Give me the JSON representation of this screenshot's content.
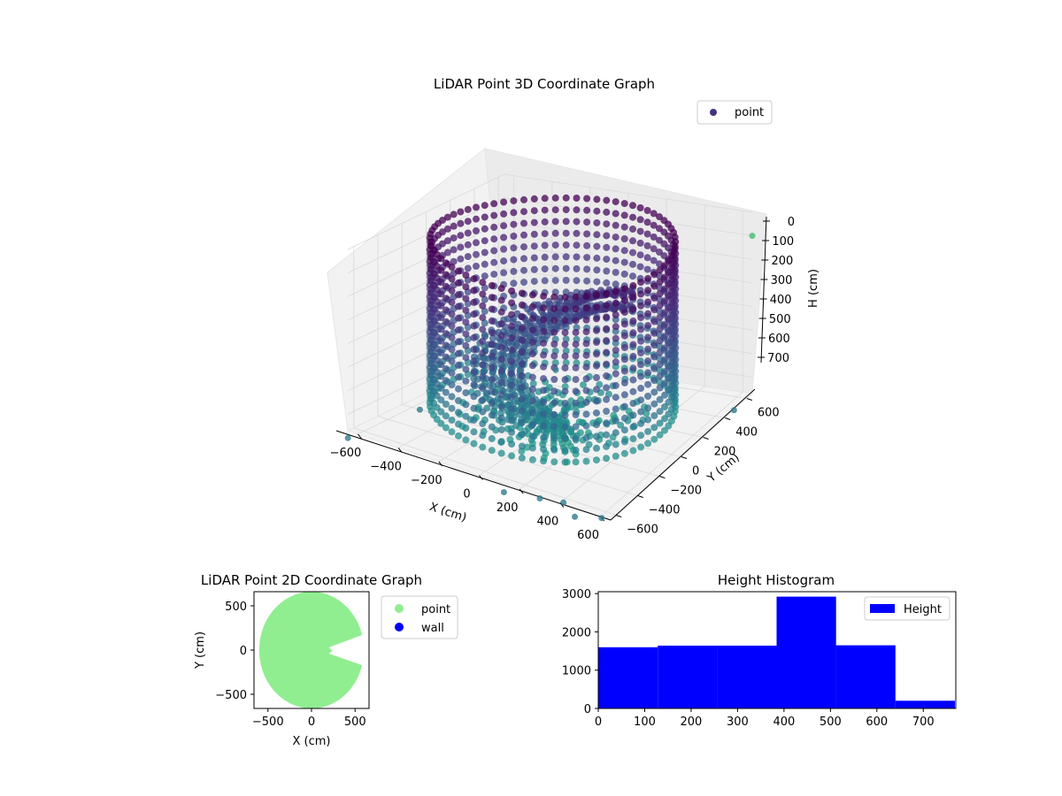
{
  "figure": {
    "background": "#ffffff"
  },
  "chart_data": [
    {
      "id": "lidar-3d",
      "type": "scatter",
      "projection": "3d",
      "title": "LiDAR Point 3D Coordinate Graph",
      "xlabel": "X (cm)",
      "ylabel": "Y (cm)",
      "zlabel": "H (cm)",
      "xlim": [
        -650,
        650
      ],
      "ylim": [
        -650,
        650
      ],
      "zlim": [
        0,
        770
      ],
      "z_inverted": true,
      "x_ticks": [
        "−600",
        "−400",
        "−200",
        "0",
        "200",
        "400",
        "600"
      ],
      "x_tick_values": [
        -600,
        -400,
        -200,
        0,
        200,
        400,
        600
      ],
      "y_ticks": [
        "−600",
        "−400",
        "−200",
        "0",
        "200",
        "400",
        "600"
      ],
      "y_tick_values": [
        -600,
        -400,
        -200,
        0,
        200,
        400,
        600
      ],
      "z_ticks": [
        "0",
        "100",
        "200",
        "300",
        "400",
        "500",
        "600",
        "700"
      ],
      "z_tick_values": [
        0,
        100,
        200,
        300,
        400,
        500,
        600,
        700
      ],
      "grid": true,
      "legend": {
        "position": "top-right",
        "entries": [
          "point"
        ]
      },
      "colormap": "viridis",
      "series": [
        {
          "name": "point",
          "color": "#46337e",
          "description_values": {
            "outer_wall_radius_cm": 540,
            "wall_height_range_cm": [
              0,
              770
            ],
            "inner_ramp_radius_cm": [
              150,
              380
            ]
          },
          "outliers": [
            {
              "x": -620,
              "y": -700,
              "h": 780
            },
            {
              "x": -560,
              "y": -200,
              "h": 770
            },
            {
              "x": -350,
              "y": 600,
              "h": 780
            },
            {
              "x": 300,
              "y": -650,
              "h": 780
            },
            {
              "x": 150,
              "y": -700,
              "h": 780
            },
            {
              "x": 400,
              "y": -620,
              "h": 780
            },
            {
              "x": 500,
              "y": -700,
              "h": 780
            },
            {
              "x": 600,
              "y": -640,
              "h": 780
            },
            {
              "x": 640,
              "y": 500,
              "h": 780
            },
            {
              "x": 650,
              "y": 650,
              "h": 100
            }
          ]
        }
      ]
    },
    {
      "id": "lidar-2d",
      "type": "scatter",
      "title": "LiDAR Point 2D Coordinate Graph",
      "xlabel": "X (cm)",
      "ylabel": "Y (cm)",
      "xlim": [
        -660,
        660
      ],
      "ylim": [
        -660,
        660
      ],
      "x_ticks": [
        "−500",
        "0",
        "500"
      ],
      "x_tick_values": [
        -500,
        0,
        500
      ],
      "y_ticks": [
        "500",
        "0",
        "−500"
      ],
      "y_tick_values": [
        500,
        0,
        -500
      ],
      "grid": false,
      "legend": {
        "position": "right-outside",
        "entries": [
          "point",
          "wall"
        ]
      },
      "series": [
        {
          "name": "point",
          "color": "#90ee90",
          "shape": "disc with gap to the right",
          "outer_radius": 600,
          "gap_inner_radius": 240
        },
        {
          "name": "wall",
          "color": "#0000ff",
          "values": []
        }
      ]
    },
    {
      "id": "height-hist",
      "type": "bar",
      "title": "Height Histogram",
      "xlabel": "",
      "ylabel": "",
      "xlim": [
        0,
        770
      ],
      "ylim": [
        0,
        3050
      ],
      "x_ticks": [
        "0",
        "100",
        "200",
        "300",
        "400",
        "500",
        "600",
        "700"
      ],
      "x_tick_values": [
        0,
        100,
        200,
        300,
        400,
        500,
        600,
        700
      ],
      "y_ticks": [
        "0",
        "1000",
        "2000",
        "3000"
      ],
      "y_tick_values": [
        0,
        1000,
        2000,
        3000
      ],
      "legend": {
        "position": "top-right",
        "entries": [
          "Height"
        ]
      },
      "series": [
        {
          "name": "Height",
          "color": "#0000ff",
          "bins": [
            {
              "x0": 0,
              "x1": 128,
              "value": 1600
            },
            {
              "x0": 128,
              "x1": 256,
              "value": 1640
            },
            {
              "x0": 256,
              "x1": 384,
              "value": 1640
            },
            {
              "x0": 384,
              "x1": 512,
              "value": 2920
            },
            {
              "x0": 512,
              "x1": 640,
              "value": 1650
            },
            {
              "x0": 640,
              "x1": 768,
              "value": 200
            }
          ]
        }
      ]
    }
  ]
}
